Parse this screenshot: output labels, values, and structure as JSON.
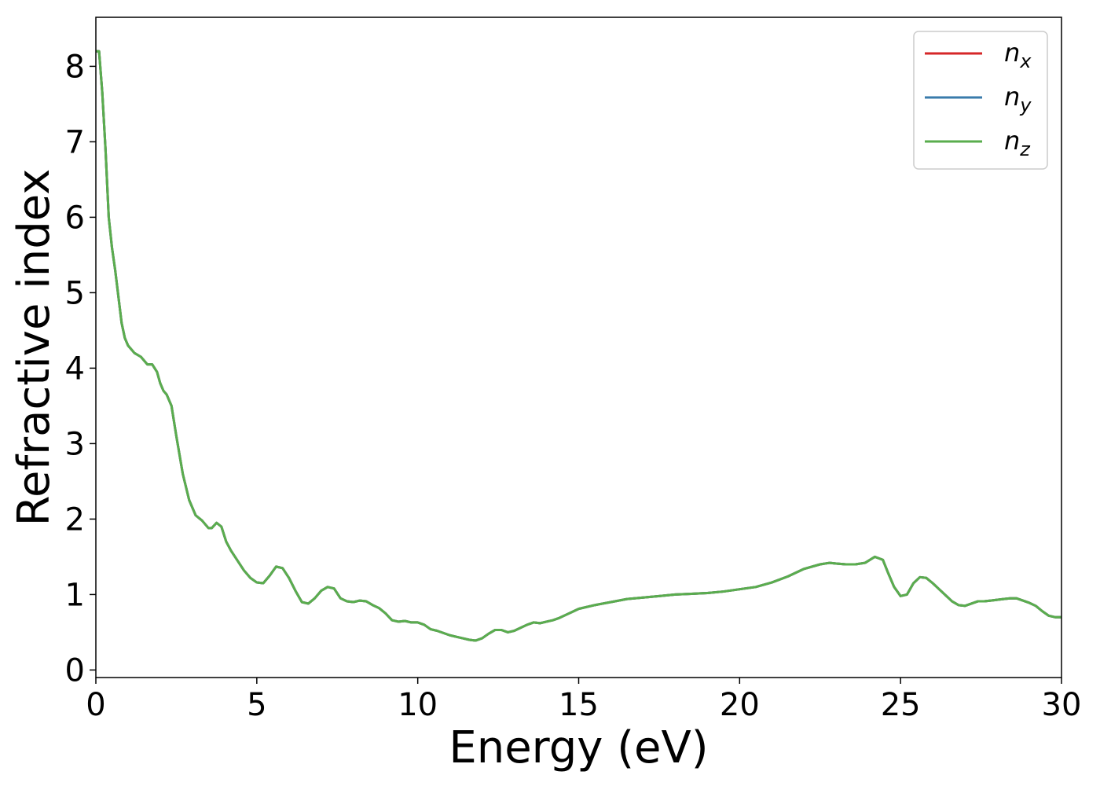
{
  "chart_data": {
    "type": "line",
    "title": "",
    "xlabel": "Energy (eV)",
    "ylabel": "Refractive index",
    "xlim": [
      0,
      30
    ],
    "ylim": [
      -0.1,
      8.65
    ],
    "xticks": [
      0,
      5,
      10,
      15,
      20,
      25,
      30
    ],
    "yticks": [
      0,
      1,
      2,
      3,
      4,
      5,
      6,
      7,
      8
    ],
    "grid": false,
    "legend_position": "top-right",
    "x": [
      0.0,
      0.1,
      0.2,
      0.3,
      0.4,
      0.5,
      0.6,
      0.7,
      0.8,
      0.9,
      1.0,
      1.2,
      1.4,
      1.6,
      1.75,
      1.9,
      2.0,
      2.1,
      2.2,
      2.35,
      2.5,
      2.7,
      2.9,
      3.1,
      3.3,
      3.5,
      3.6,
      3.75,
      3.9,
      4.05,
      4.2,
      4.4,
      4.6,
      4.8,
      5.0,
      5.2,
      5.4,
      5.6,
      5.8,
      6.0,
      6.2,
      6.4,
      6.6,
      6.8,
      7.0,
      7.2,
      7.4,
      7.6,
      7.8,
      8.0,
      8.2,
      8.4,
      8.6,
      8.8,
      9.0,
      9.2,
      9.4,
      9.6,
      9.8,
      10.0,
      10.2,
      10.4,
      10.6,
      10.8,
      11.0,
      11.2,
      11.4,
      11.6,
      11.8,
      12.0,
      12.2,
      12.4,
      12.6,
      12.8,
      13.0,
      13.2,
      13.4,
      13.6,
      13.8,
      14.0,
      14.2,
      14.4,
      14.6,
      14.8,
      15.0,
      15.5,
      16.0,
      16.5,
      17.0,
      17.5,
      18.0,
      18.5,
      19.0,
      19.5,
      20.0,
      20.5,
      21.0,
      21.5,
      22.0,
      22.5,
      22.8,
      23.0,
      23.3,
      23.6,
      23.9,
      24.2,
      24.45,
      24.6,
      24.8,
      25.0,
      25.2,
      25.4,
      25.6,
      25.8,
      26.0,
      26.2,
      26.4,
      26.6,
      26.8,
      27.0,
      27.2,
      27.4,
      27.6,
      27.8,
      28.0,
      28.2,
      28.4,
      28.6,
      28.8,
      29.0,
      29.2,
      29.4,
      29.6,
      29.8,
      30.0
    ],
    "series": [
      {
        "name": "n_x",
        "values": [
          8.2,
          8.2,
          7.65,
          6.9,
          6.0,
          5.6,
          5.3,
          4.95,
          4.6,
          4.4,
          4.3,
          4.2,
          4.15,
          4.05,
          4.05,
          3.95,
          3.8,
          3.7,
          3.65,
          3.5,
          3.1,
          2.6,
          2.25,
          2.05,
          1.98,
          1.88,
          1.88,
          1.95,
          1.9,
          1.7,
          1.58,
          1.45,
          1.32,
          1.22,
          1.16,
          1.15,
          1.25,
          1.37,
          1.35,
          1.22,
          1.05,
          0.9,
          0.88,
          0.95,
          1.05,
          1.1,
          1.08,
          0.95,
          0.91,
          0.9,
          0.92,
          0.91,
          0.86,
          0.82,
          0.75,
          0.66,
          0.64,
          0.65,
          0.63,
          0.63,
          0.6,
          0.54,
          0.52,
          0.49,
          0.46,
          0.44,
          0.42,
          0.4,
          0.39,
          0.42,
          0.48,
          0.53,
          0.53,
          0.5,
          0.52,
          0.56,
          0.6,
          0.63,
          0.62,
          0.64,
          0.66,
          0.69,
          0.73,
          0.77,
          0.81,
          0.86,
          0.9,
          0.94,
          0.96,
          0.98,
          1.0,
          1.01,
          1.02,
          1.04,
          1.07,
          1.1,
          1.16,
          1.24,
          1.34,
          1.4,
          1.42,
          1.41,
          1.4,
          1.4,
          1.42,
          1.5,
          1.46,
          1.3,
          1.1,
          0.98,
          1.0,
          1.15,
          1.23,
          1.22,
          1.15,
          1.07,
          0.99,
          0.91,
          0.86,
          0.85,
          0.88,
          0.91,
          0.91,
          0.92,
          0.93,
          0.94,
          0.95,
          0.95,
          0.92,
          0.89,
          0.85,
          0.78,
          0.72,
          0.7,
          0.7
        ]
      },
      {
        "name": "n_y",
        "values": [
          8.2,
          8.2,
          7.65,
          6.9,
          6.0,
          5.6,
          5.3,
          4.95,
          4.6,
          4.4,
          4.3,
          4.2,
          4.15,
          4.05,
          4.05,
          3.95,
          3.8,
          3.7,
          3.65,
          3.5,
          3.1,
          2.6,
          2.25,
          2.05,
          1.98,
          1.88,
          1.88,
          1.95,
          1.9,
          1.7,
          1.58,
          1.45,
          1.32,
          1.22,
          1.16,
          1.15,
          1.25,
          1.37,
          1.35,
          1.22,
          1.05,
          0.9,
          0.88,
          0.95,
          1.05,
          1.1,
          1.08,
          0.95,
          0.91,
          0.9,
          0.92,
          0.91,
          0.86,
          0.82,
          0.75,
          0.66,
          0.64,
          0.65,
          0.63,
          0.63,
          0.6,
          0.54,
          0.52,
          0.49,
          0.46,
          0.44,
          0.42,
          0.4,
          0.39,
          0.42,
          0.48,
          0.53,
          0.53,
          0.5,
          0.52,
          0.56,
          0.6,
          0.63,
          0.62,
          0.64,
          0.66,
          0.69,
          0.73,
          0.77,
          0.81,
          0.86,
          0.9,
          0.94,
          0.96,
          0.98,
          1.0,
          1.01,
          1.02,
          1.04,
          1.07,
          1.1,
          1.16,
          1.24,
          1.34,
          1.4,
          1.42,
          1.41,
          1.4,
          1.4,
          1.42,
          1.5,
          1.46,
          1.3,
          1.1,
          0.98,
          1.0,
          1.15,
          1.23,
          1.22,
          1.15,
          1.07,
          0.99,
          0.91,
          0.86,
          0.85,
          0.88,
          0.91,
          0.91,
          0.92,
          0.93,
          0.94,
          0.95,
          0.95,
          0.92,
          0.89,
          0.85,
          0.78,
          0.72,
          0.7,
          0.7
        ]
      },
      {
        "name": "n_z",
        "values": [
          8.2,
          8.2,
          7.65,
          6.9,
          6.0,
          5.6,
          5.3,
          4.95,
          4.6,
          4.4,
          4.3,
          4.2,
          4.15,
          4.05,
          4.05,
          3.95,
          3.8,
          3.7,
          3.65,
          3.5,
          3.1,
          2.6,
          2.25,
          2.05,
          1.98,
          1.88,
          1.88,
          1.95,
          1.9,
          1.7,
          1.58,
          1.45,
          1.32,
          1.22,
          1.16,
          1.15,
          1.25,
          1.37,
          1.35,
          1.22,
          1.05,
          0.9,
          0.88,
          0.95,
          1.05,
          1.1,
          1.08,
          0.95,
          0.91,
          0.9,
          0.92,
          0.91,
          0.86,
          0.82,
          0.75,
          0.66,
          0.64,
          0.65,
          0.63,
          0.63,
          0.6,
          0.54,
          0.52,
          0.49,
          0.46,
          0.44,
          0.42,
          0.4,
          0.39,
          0.42,
          0.48,
          0.53,
          0.53,
          0.5,
          0.52,
          0.56,
          0.6,
          0.63,
          0.62,
          0.64,
          0.66,
          0.69,
          0.73,
          0.77,
          0.81,
          0.86,
          0.9,
          0.94,
          0.96,
          0.98,
          1.0,
          1.01,
          1.02,
          1.04,
          1.07,
          1.1,
          1.16,
          1.24,
          1.34,
          1.4,
          1.42,
          1.41,
          1.4,
          1.4,
          1.42,
          1.5,
          1.46,
          1.3,
          1.1,
          0.98,
          1.0,
          1.15,
          1.23,
          1.22,
          1.15,
          1.07,
          0.99,
          0.91,
          0.86,
          0.85,
          0.88,
          0.91,
          0.91,
          0.92,
          0.93,
          0.94,
          0.95,
          0.95,
          0.92,
          0.89,
          0.85,
          0.78,
          0.72,
          0.7,
          0.7
        ]
      }
    ],
    "legend": [
      {
        "base": "n",
        "sub": "x",
        "color": "#d62728"
      },
      {
        "base": "n",
        "sub": "y",
        "color": "#3a7bab"
      },
      {
        "base": "n",
        "sub": "z",
        "color": "#5aad4e"
      }
    ],
    "series_colors": [
      "#d62728",
      "#3a7bab",
      "#5aad4e"
    ]
  }
}
